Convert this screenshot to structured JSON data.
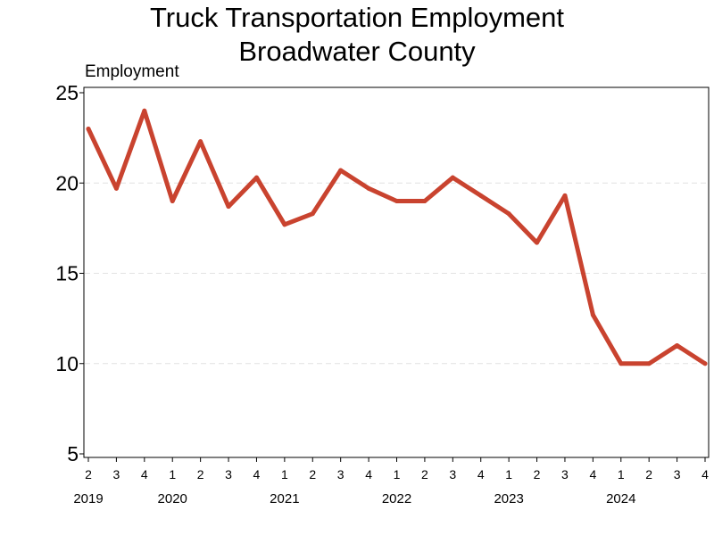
{
  "chart_data": {
    "type": "line",
    "title": "Truck Transportation Employment",
    "subtitle": "Broadwater County",
    "xlabel": "",
    "ylabel": "Employment",
    "ylim": [
      5,
      25
    ],
    "yticks": [
      5,
      10,
      15,
      20,
      25
    ],
    "grid": true,
    "series_color": "#C9432F",
    "x": [
      "2019 Q2",
      "2019 Q3",
      "2019 Q4",
      "2020 Q1",
      "2020 Q2",
      "2020 Q3",
      "2020 Q4",
      "2021 Q1",
      "2021 Q2",
      "2021 Q3",
      "2021 Q4",
      "2022 Q1",
      "2022 Q2",
      "2022 Q3",
      "2022 Q4",
      "2023 Q1",
      "2023 Q2",
      "2023 Q3",
      "2023 Q4",
      "2024 Q1",
      "2024 Q2",
      "2024 Q3",
      "2024 Q4"
    ],
    "quarter_labels": [
      "2",
      "3",
      "4",
      "1",
      "2",
      "3",
      "4",
      "1",
      "2",
      "3",
      "4",
      "1",
      "2",
      "3",
      "4",
      "1",
      "2",
      "3",
      "4",
      "1",
      "2",
      "3",
      "4"
    ],
    "years": [
      {
        "label": "2019",
        "first_index": 0
      },
      {
        "label": "2020",
        "first_index": 3
      },
      {
        "label": "2021",
        "first_index": 7
      },
      {
        "label": "2022",
        "first_index": 11
      },
      {
        "label": "2023",
        "first_index": 15
      },
      {
        "label": "2024",
        "first_index": 19
      }
    ],
    "series": [
      {
        "values": [
          23,
          19.7,
          24,
          19,
          22.3,
          18.7,
          20.3,
          17.7,
          18.3,
          20.7,
          19.7,
          19,
          19,
          20.3,
          19.3,
          18.3,
          16.7,
          19.3,
          12.7,
          10,
          10,
          11,
          10
        ]
      }
    ]
  }
}
